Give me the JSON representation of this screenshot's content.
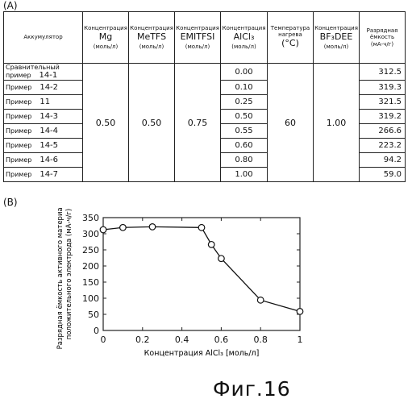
{
  "panel_a_label": "(A)",
  "panel_b_label": "(B)",
  "figure_caption": "Фиг.16",
  "table": {
    "headers": [
      {
        "pre": "",
        "big": "Аккумулятор",
        "unit": ""
      },
      {
        "pre": "Концентрация",
        "big": "Mg",
        "unit": "(моль/л)"
      },
      {
        "pre": "Концентрация",
        "big": "MeTFS",
        "unit": "(моль/л)"
      },
      {
        "pre": "Концентрация",
        "big": "EMITFSI",
        "unit": "(моль/л)"
      },
      {
        "pre": "Концентрация",
        "big": "AlCl₃",
        "unit": "(моль/л)"
      },
      {
        "pre": "Температура нагрева",
        "big": "(°C)",
        "unit": ""
      },
      {
        "pre": "Концентрация",
        "big": "BF₃DEE",
        "unit": "(моль/л)"
      },
      {
        "pre": "Разрядная ёмкость",
        "big": "",
        "unit": "(мА-ч/г)"
      }
    ],
    "rows": [
      {
        "name": "Сравнительный пример",
        "num": "14-1",
        "alcl3": "0.00",
        "capacity": "312.5"
      },
      {
        "name": "Пример",
        "num": "14-2",
        "alcl3": "0.10",
        "capacity": "319.3"
      },
      {
        "name": "Пример",
        "num": "11",
        "alcl3": "0.25",
        "capacity": "321.5"
      },
      {
        "name": "Пример",
        "num": "14-3",
        "alcl3": "0.50",
        "capacity": "319.2"
      },
      {
        "name": "Пример",
        "num": "14-4",
        "alcl3": "0.55",
        "capacity": "266.6"
      },
      {
        "name": "Пример",
        "num": "14-5",
        "alcl3": "0.60",
        "capacity": "223.2"
      },
      {
        "name": "Пример",
        "num": "14-6",
        "alcl3": "0.80",
        "capacity": "94.2"
      },
      {
        "name": "Пример",
        "num": "14-7",
        "alcl3": "1.00",
        "capacity": "59.0"
      }
    ],
    "merged": {
      "mg": "0.50",
      "metfs": "0.50",
      "emitfsi": "0.75",
      "temperature": "60",
      "bf3dee": "1.00"
    }
  },
  "chart_data": {
    "type": "line",
    "x": [
      0,
      0.1,
      0.25,
      0.5,
      0.55,
      0.6,
      0.8,
      1.0
    ],
    "series": [
      {
        "values": [
          312.5,
          319.3,
          321.5,
          319.2,
          266.6,
          223.2,
          94.2,
          59.0
        ]
      }
    ],
    "xlabel": "Концентрация AlCl₃ [моль/л]",
    "ylabel": "Разрядная ёмкость активного материала положительного электрода (мА-ч/г)",
    "ylabel_lines": [
      "Разрядная ёмкость активного материала",
      "положительного электрода (мА-ч/г)"
    ],
    "xlim": [
      0,
      1
    ],
    "ylim": [
      0,
      350
    ],
    "xticks": [
      "0",
      "0.2",
      "0.4",
      "0.6",
      "0.8",
      "1"
    ],
    "xtick_values": [
      0,
      0.2,
      0.4,
      0.6,
      0.8,
      1
    ],
    "yticks": [
      "0",
      "50",
      "100",
      "150",
      "200",
      "250",
      "300",
      "350"
    ],
    "ytick_values": [
      0,
      50,
      100,
      150,
      200,
      250,
      300,
      350
    ],
    "grid": false
  }
}
